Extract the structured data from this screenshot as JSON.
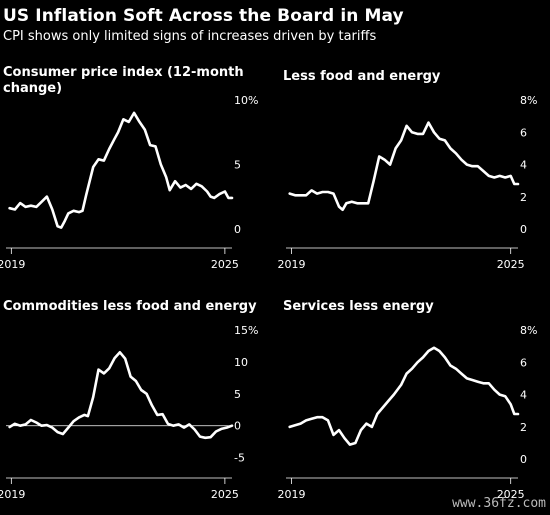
{
  "header": {
    "title": "US Inflation Soft Across the Board in May",
    "subtitle": "CPI shows only limited signs of increases driven by tariffs"
  },
  "watermark": "www.36fz.com",
  "chart_data": [
    {
      "type": "line",
      "title": "Consumer price index (12-month change)",
      "x_range": [
        2018.85,
        2025.2
      ],
      "x_ticks": [
        "2019",
        "2025"
      ],
      "ylim": [
        -0.4,
        10
      ],
      "y_ticks": [
        "0",
        "5",
        "10%"
      ],
      "zero_line": false,
      "series": [
        {
          "points": [
            [
              2018.95,
              1.6
            ],
            [
              2019.1,
              1.5
            ],
            [
              2019.25,
              2.0
            ],
            [
              2019.4,
              1.7
            ],
            [
              2019.55,
              1.8
            ],
            [
              2019.7,
              1.7
            ],
            [
              2019.85,
              2.1
            ],
            [
              2020.0,
              2.5
            ],
            [
              2020.15,
              1.5
            ],
            [
              2020.3,
              0.2
            ],
            [
              2020.4,
              0.1
            ],
            [
              2020.5,
              0.6
            ],
            [
              2020.6,
              1.2
            ],
            [
              2020.75,
              1.4
            ],
            [
              2020.9,
              1.3
            ],
            [
              2021.0,
              1.4
            ],
            [
              2021.1,
              2.6
            ],
            [
              2021.3,
              4.8
            ],
            [
              2021.45,
              5.4
            ],
            [
              2021.6,
              5.3
            ],
            [
              2021.75,
              6.2
            ],
            [
              2021.9,
              7.0
            ],
            [
              2022.0,
              7.5
            ],
            [
              2022.15,
              8.5
            ],
            [
              2022.3,
              8.3
            ],
            [
              2022.45,
              9.0
            ],
            [
              2022.6,
              8.3
            ],
            [
              2022.75,
              7.7
            ],
            [
              2022.9,
              6.5
            ],
            [
              2023.05,
              6.4
            ],
            [
              2023.2,
              5.0
            ],
            [
              2023.35,
              4.0
            ],
            [
              2023.45,
              3.0
            ],
            [
              2023.6,
              3.7
            ],
            [
              2023.75,
              3.2
            ],
            [
              2023.9,
              3.4
            ],
            [
              2024.05,
              3.1
            ],
            [
              2024.2,
              3.5
            ],
            [
              2024.35,
              3.3
            ],
            [
              2024.5,
              2.9
            ],
            [
              2024.6,
              2.5
            ],
            [
              2024.7,
              2.4
            ],
            [
              2024.85,
              2.7
            ],
            [
              2025.0,
              2.9
            ],
            [
              2025.1,
              2.4
            ],
            [
              2025.2,
              2.4
            ]
          ]
        }
      ]
    },
    {
      "type": "line",
      "title": "Less food and energy",
      "x_range": [
        2018.85,
        2025.2
      ],
      "x_ticks": [
        "2019",
        "2025"
      ],
      "ylim": [
        -0.3,
        8
      ],
      "y_ticks": [
        "0",
        "2",
        "4",
        "6",
        "8%"
      ],
      "zero_line": false,
      "series": [
        {
          "points": [
            [
              2018.95,
              2.2
            ],
            [
              2019.1,
              2.1
            ],
            [
              2019.25,
              2.1
            ],
            [
              2019.4,
              2.1
            ],
            [
              2019.55,
              2.4
            ],
            [
              2019.7,
              2.2
            ],
            [
              2019.85,
              2.3
            ],
            [
              2020.0,
              2.3
            ],
            [
              2020.15,
              2.2
            ],
            [
              2020.3,
              1.4
            ],
            [
              2020.4,
              1.2
            ],
            [
              2020.5,
              1.6
            ],
            [
              2020.65,
              1.7
            ],
            [
              2020.8,
              1.6
            ],
            [
              2020.95,
              1.6
            ],
            [
              2021.1,
              1.6
            ],
            [
              2021.25,
              3.0
            ],
            [
              2021.4,
              4.5
            ],
            [
              2021.55,
              4.3
            ],
            [
              2021.7,
              4.0
            ],
            [
              2021.85,
              5.0
            ],
            [
              2022.0,
              5.5
            ],
            [
              2022.15,
              6.4
            ],
            [
              2022.3,
              6.0
            ],
            [
              2022.45,
              5.9
            ],
            [
              2022.6,
              5.9
            ],
            [
              2022.75,
              6.6
            ],
            [
              2022.9,
              6.0
            ],
            [
              2023.05,
              5.6
            ],
            [
              2023.2,
              5.5
            ],
            [
              2023.35,
              5.0
            ],
            [
              2023.5,
              4.7
            ],
            [
              2023.65,
              4.3
            ],
            [
              2023.8,
              4.0
            ],
            [
              2023.95,
              3.9
            ],
            [
              2024.1,
              3.9
            ],
            [
              2024.25,
              3.6
            ],
            [
              2024.4,
              3.3
            ],
            [
              2024.55,
              3.2
            ],
            [
              2024.7,
              3.3
            ],
            [
              2024.85,
              3.2
            ],
            [
              2025.0,
              3.3
            ],
            [
              2025.1,
              2.8
            ],
            [
              2025.2,
              2.8
            ]
          ]
        }
      ]
    },
    {
      "type": "line",
      "title": "Commodities less food and energy",
      "x_range": [
        2018.85,
        2025.2
      ],
      "x_ticks": [
        "2019",
        "2025"
      ],
      "ylim": [
        -6,
        15
      ],
      "y_ticks": [
        "-5",
        "0",
        "5",
        "10",
        "15%"
      ],
      "zero_line": true,
      "series": [
        {
          "points": [
            [
              2018.95,
              -0.2
            ],
            [
              2019.1,
              0.3
            ],
            [
              2019.25,
              0.0
            ],
            [
              2019.4,
              0.2
            ],
            [
              2019.55,
              0.9
            ],
            [
              2019.7,
              0.5
            ],
            [
              2019.85,
              0.0
            ],
            [
              2020.0,
              0.1
            ],
            [
              2020.15,
              -0.3
            ],
            [
              2020.3,
              -1.0
            ],
            [
              2020.45,
              -1.3
            ],
            [
              2020.6,
              -0.3
            ],
            [
              2020.75,
              0.7
            ],
            [
              2020.9,
              1.3
            ],
            [
              2021.05,
              1.7
            ],
            [
              2021.15,
              1.5
            ],
            [
              2021.3,
              4.5
            ],
            [
              2021.45,
              8.8
            ],
            [
              2021.6,
              8.2
            ],
            [
              2021.75,
              9.0
            ],
            [
              2021.9,
              10.6
            ],
            [
              2022.05,
              11.5
            ],
            [
              2022.2,
              10.5
            ],
            [
              2022.35,
              7.7
            ],
            [
              2022.5,
              7.0
            ],
            [
              2022.65,
              5.6
            ],
            [
              2022.8,
              5.0
            ],
            [
              2022.95,
              3.2
            ],
            [
              2023.1,
              1.7
            ],
            [
              2023.25,
              1.8
            ],
            [
              2023.4,
              0.3
            ],
            [
              2023.55,
              0.0
            ],
            [
              2023.7,
              0.2
            ],
            [
              2023.85,
              -0.3
            ],
            [
              2024.0,
              0.2
            ],
            [
              2024.15,
              -0.6
            ],
            [
              2024.3,
              -1.7
            ],
            [
              2024.45,
              -1.9
            ],
            [
              2024.6,
              -1.8
            ],
            [
              2024.75,
              -0.9
            ],
            [
              2024.9,
              -0.5
            ],
            [
              2025.05,
              -0.3
            ],
            [
              2025.2,
              0.0
            ]
          ]
        }
      ]
    },
    {
      "type": "line",
      "title": "Services less energy",
      "x_range": [
        2018.85,
        2025.2
      ],
      "x_ticks": [
        "2019",
        "2025"
      ],
      "ylim": [
        -0.3,
        8
      ],
      "y_ticks": [
        "0",
        "2",
        "4",
        "6",
        "8%"
      ],
      "zero_line": false,
      "series": [
        {
          "points": [
            [
              2018.95,
              2.0
            ],
            [
              2019.1,
              2.1
            ],
            [
              2019.25,
              2.2
            ],
            [
              2019.4,
              2.4
            ],
            [
              2019.55,
              2.5
            ],
            [
              2019.7,
              2.6
            ],
            [
              2019.85,
              2.6
            ],
            [
              2020.0,
              2.4
            ],
            [
              2020.15,
              1.5
            ],
            [
              2020.3,
              1.8
            ],
            [
              2020.45,
              1.3
            ],
            [
              2020.6,
              0.9
            ],
            [
              2020.75,
              1.0
            ],
            [
              2020.9,
              1.8
            ],
            [
              2021.05,
              2.2
            ],
            [
              2021.2,
              2.0
            ],
            [
              2021.35,
              2.8
            ],
            [
              2021.5,
              3.2
            ],
            [
              2021.65,
              3.6
            ],
            [
              2021.8,
              4.0
            ],
            [
              2022.0,
              4.6
            ],
            [
              2022.15,
              5.3
            ],
            [
              2022.3,
              5.6
            ],
            [
              2022.45,
              6.0
            ],
            [
              2022.6,
              6.3
            ],
            [
              2022.75,
              6.7
            ],
            [
              2022.9,
              6.9
            ],
            [
              2023.05,
              6.7
            ],
            [
              2023.2,
              6.3
            ],
            [
              2023.35,
              5.8
            ],
            [
              2023.5,
              5.6
            ],
            [
              2023.65,
              5.3
            ],
            [
              2023.8,
              5.0
            ],
            [
              2023.95,
              4.9
            ],
            [
              2024.1,
              4.8
            ],
            [
              2024.25,
              4.7
            ],
            [
              2024.4,
              4.7
            ],
            [
              2024.55,
              4.3
            ],
            [
              2024.7,
              4.0
            ],
            [
              2024.85,
              3.9
            ],
            [
              2025.0,
              3.4
            ],
            [
              2025.1,
              2.8
            ],
            [
              2025.2,
              2.8
            ]
          ]
        }
      ]
    }
  ]
}
